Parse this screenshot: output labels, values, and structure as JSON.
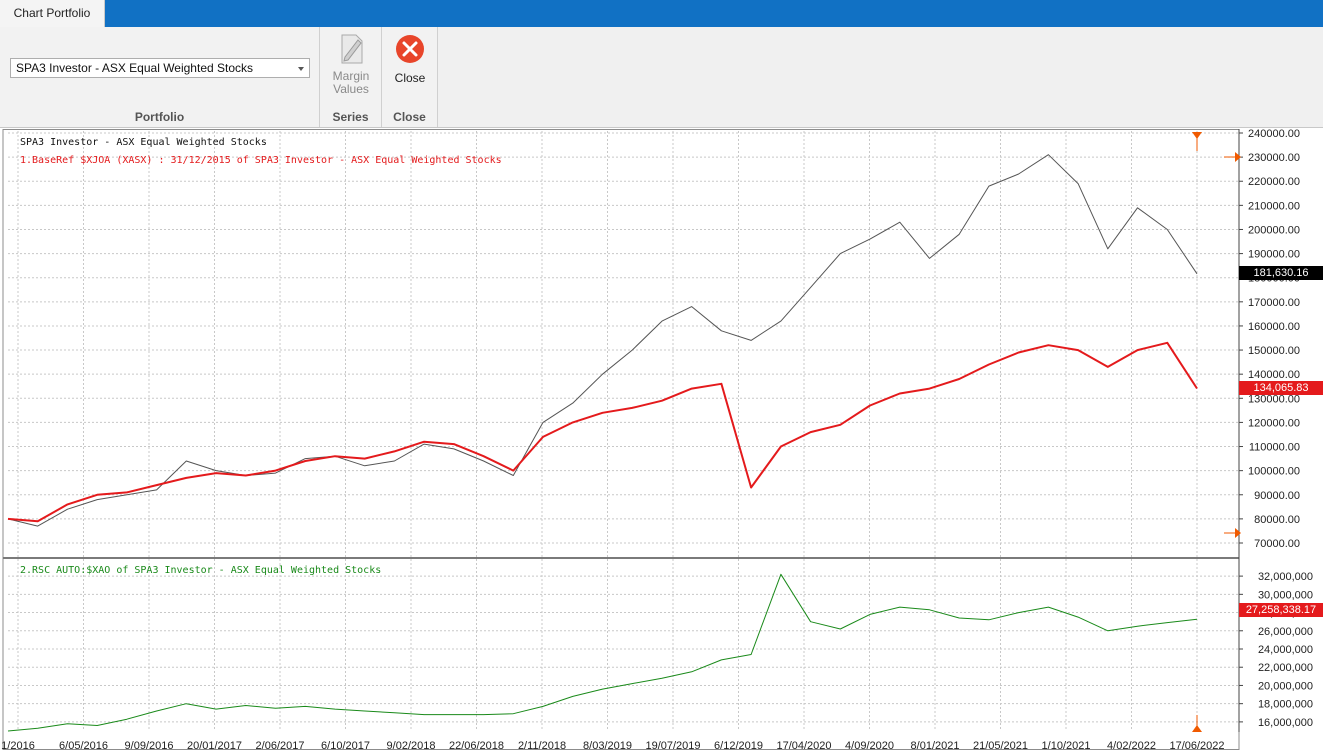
{
  "window": {
    "tab_title": "Chart Portfolio"
  },
  "ribbon": {
    "portfolio": {
      "selected": "SPA3 Investor - ASX Equal Weighted Stocks",
      "group_label": "Portfolio"
    },
    "series": {
      "margin_values_line1": "Margin",
      "margin_values_line2": "Values",
      "group_label": "Series"
    },
    "close": {
      "button_label": "Close",
      "group_label": "Close"
    }
  },
  "colors": {
    "titlebar": "#1171c4",
    "portfolio_line": "#555555",
    "baseref_line": "#e41a1c",
    "rsc_line": "#1a8a1a",
    "marker": "#f05a00"
  },
  "chart": {
    "legend_portfolio": "SPA3 Investor - ASX Equal Weighted Stocks",
    "legend_baseref": "1.BaseRef $XJOA (XASX) : 31/12/2015  of SPA3 Investor - ASX Equal Weighted Stocks",
    "legend_rsc": "2.RSC  AUTO:$XAO of SPA3 Investor - ASX Equal Weighted Stocks",
    "last_portfolio": "181,630.16",
    "last_baseref": "134,065.83",
    "last_rsc": "27,258,338.17"
  },
  "chart_data": [
    {
      "type": "line",
      "panel": "price",
      "ylim": [
        70000,
        240000
      ],
      "y_ticks": [
        "70000.00",
        "80000.00",
        "90000.00",
        "100000.00",
        "110000.00",
        "120000.00",
        "130000.00",
        "140000.00",
        "150000.00",
        "160000.00",
        "170000.00",
        "180000.00",
        "190000.00",
        "200000.00",
        "210000.00",
        "220000.00",
        "230000.00",
        "240000.00"
      ],
      "x_labels": [
        "1/2016",
        "6/05/2016",
        "9/09/2016",
        "20/01/2017",
        "2/06/2017",
        "6/10/2017",
        "9/02/2018",
        "22/06/2018",
        "2/11/2018",
        "8/03/2019",
        "19/07/2019",
        "6/12/2019",
        "17/04/2020",
        "4/09/2020",
        "8/01/2021",
        "21/05/2021",
        "1/10/2021",
        "4/02/2022",
        "17/06/2022"
      ],
      "series": [
        {
          "name": "SPA3 Investor - ASX Equal Weighted Stocks",
          "color": "#555555",
          "values": [
            80000,
            77000,
            84000,
            88000,
            90000,
            92000,
            104000,
            100000,
            98000,
            99000,
            105000,
            106000,
            102000,
            104000,
            111000,
            109000,
            104000,
            98000,
            120000,
            128000,
            140000,
            150000,
            162000,
            168000,
            158000,
            154000,
            162000,
            176000,
            190000,
            196000,
            203000,
            188000,
            198000,
            218000,
            223000,
            231000,
            219000,
            192000,
            209000,
            200000,
            181630
          ]
        },
        {
          "name": "1.BaseRef $XJOA (XASX) : 31/12/2015  of SPA3 Investor - ASX Equal Weighted Stocks",
          "color": "#e41a1c",
          "values": [
            80000,
            79000,
            86000,
            90000,
            91000,
            94000,
            97000,
            99000,
            98000,
            100000,
            104000,
            106000,
            105000,
            108000,
            112000,
            111000,
            106000,
            100000,
            114000,
            120000,
            124000,
            126000,
            129000,
            134000,
            136000,
            93000,
            110000,
            116000,
            119000,
            127000,
            132000,
            134000,
            138000,
            144000,
            149000,
            152000,
            150000,
            143000,
            150000,
            153000,
            134066
          ]
        }
      ]
    },
    {
      "type": "line",
      "panel": "rsc",
      "ylim": [
        15000000,
        33000000
      ],
      "y_ticks": [
        "16,000,000",
        "18,000,000",
        "20,000,000",
        "22,000,000",
        "24,000,000",
        "26,000,000",
        "28,000,000",
        "30,000,000",
        "32,000,000"
      ],
      "series": [
        {
          "name": "2.RSC  AUTO:$XAO of SPA3 Investor - ASX Equal Weighted Stocks",
          "color": "#1a8a1a",
          "values": [
            15000000,
            15300000,
            15800000,
            15600000,
            16300000,
            17200000,
            18000000,
            17400000,
            17800000,
            17500000,
            17700000,
            17400000,
            17200000,
            17000000,
            16800000,
            16800000,
            16800000,
            16900000,
            17700000,
            18800000,
            19600000,
            20200000,
            20800000,
            21500000,
            22800000,
            23400000,
            32200000,
            27000000,
            26200000,
            27800000,
            28600000,
            28300000,
            27400000,
            27200000,
            28000000,
            28600000,
            27500000,
            26000000,
            26500000,
            26900000,
            27258338
          ]
        }
      ]
    }
  ]
}
